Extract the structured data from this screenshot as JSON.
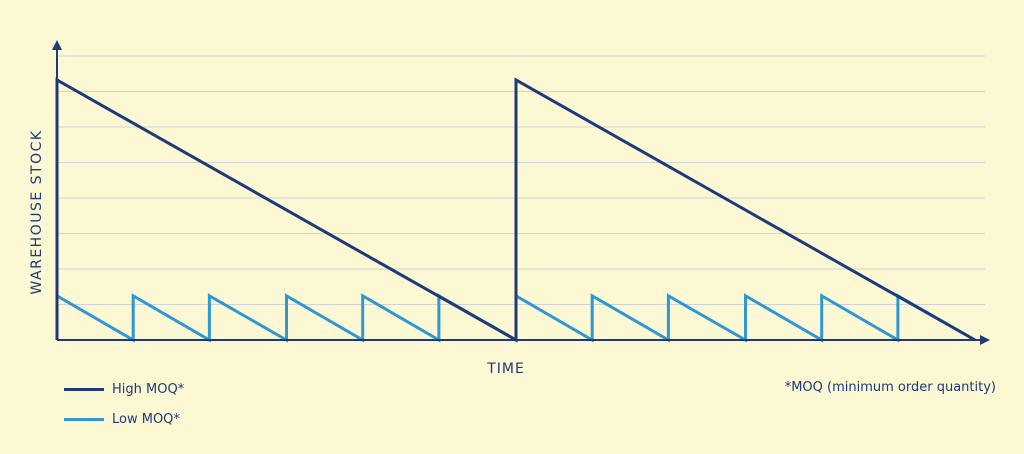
{
  "chart_data": {
    "type": "line",
    "xlabel": "TIME",
    "ylabel": "WAREHOUSE STOCK",
    "xlim": [
      0,
      100
    ],
    "ylim": [
      0,
      100
    ],
    "grid": true,
    "legend_position": "bottom-left",
    "series": [
      {
        "name": "High MOQ*",
        "color": "#1f3a7a",
        "points": [
          [
            0,
            0
          ],
          [
            0,
            100
          ],
          [
            50,
            0
          ],
          [
            50,
            100
          ],
          [
            100,
            0
          ]
        ]
      },
      {
        "name": "Low MOQ*",
        "color": "#2f97d4",
        "points": [
          [
            0,
            0
          ],
          [
            0,
            17
          ],
          [
            8.3,
            0
          ],
          [
            8.3,
            17
          ],
          [
            16.6,
            0
          ],
          [
            16.6,
            17
          ],
          [
            25,
            0
          ],
          [
            25,
            17
          ],
          [
            33.3,
            0
          ],
          [
            33.3,
            17
          ],
          [
            41.6,
            0
          ],
          [
            41.6,
            17
          ],
          [
            50,
            0
          ],
          [
            50,
            17
          ],
          [
            58.3,
            0
          ],
          [
            58.3,
            17
          ],
          [
            66.6,
            0
          ],
          [
            66.6,
            17
          ],
          [
            75,
            0
          ],
          [
            75,
            17
          ],
          [
            83.3,
            0
          ],
          [
            83.3,
            17
          ],
          [
            91.6,
            0
          ],
          [
            91.6,
            17
          ],
          [
            100,
            0
          ]
        ]
      }
    ],
    "annotations": [
      "*MOQ (minimum order quantity)"
    ]
  },
  "colors": {
    "background": "#fbf8d3",
    "axis": "#1f3a7a",
    "grid": "#cfd4d8"
  }
}
